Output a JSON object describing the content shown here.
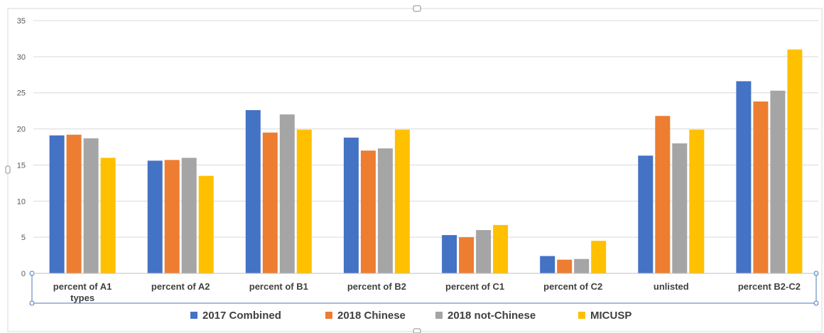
{
  "chart_data": {
    "type": "bar",
    "categories": [
      [
        "percent of A1",
        "types"
      ],
      [
        "percent of A2"
      ],
      [
        "percent of B1"
      ],
      [
        "percent of B2"
      ],
      [
        "percent of C1"
      ],
      [
        "percent of C2"
      ],
      [
        "unlisted"
      ],
      [
        "percent B2-C2"
      ]
    ],
    "series": [
      {
        "name": "2017 Combined",
        "color": "#4472C4",
        "values": [
          19.1,
          15.6,
          22.6,
          18.8,
          5.3,
          2.4,
          16.3,
          26.6
        ]
      },
      {
        "name": "2018 Chinese",
        "color": "#ED7D31",
        "values": [
          19.2,
          15.7,
          19.5,
          17.0,
          5.0,
          1.9,
          21.8,
          23.8
        ]
      },
      {
        "name": "2018 not-Chinese",
        "color": "#A5A5A5",
        "values": [
          18.7,
          16.0,
          22.0,
          17.3,
          6.0,
          2.0,
          18.0,
          25.3
        ]
      },
      {
        "name": "MICUSP",
        "color": "#FFC000",
        "values": [
          16.0,
          13.5,
          19.9,
          19.9,
          6.7,
          4.5,
          19.9,
          31.0
        ]
      }
    ],
    "ylim": [
      0,
      35
    ],
    "yticks": [
      0,
      5,
      10,
      15,
      20,
      25,
      30,
      35
    ],
    "grid": true,
    "legend": "bottom",
    "title": "",
    "xlabel": "",
    "ylabel": ""
  }
}
